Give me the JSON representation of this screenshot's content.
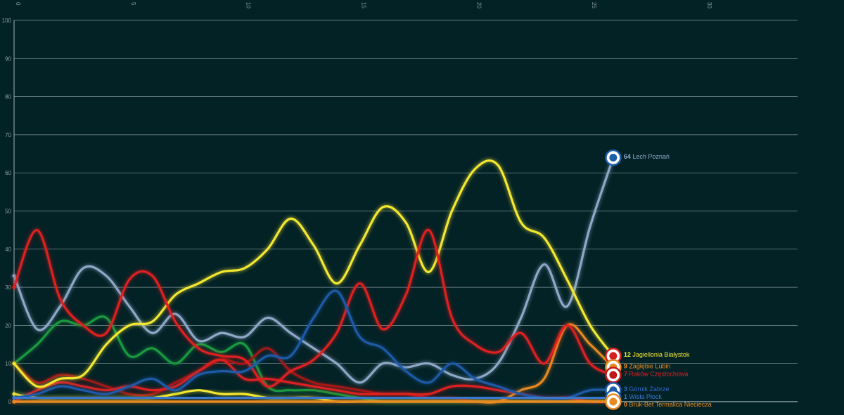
{
  "chart_data": {
    "type": "line",
    "title": "",
    "xlabel": "",
    "ylabel": "",
    "xlim": [
      0,
      34
    ],
    "ylim": [
      0,
      100
    ],
    "x_ticks": [
      0,
      5,
      10,
      15,
      20,
      25,
      30
    ],
    "y_ticks": [
      0,
      10,
      20,
      30,
      40,
      50,
      60,
      70,
      80,
      90,
      100
    ],
    "grid": true,
    "legend": "end-of-line labels",
    "series": [
      {
        "name": "Lech Poznań",
        "end_value": "64",
        "color": "#8fa8c8",
        "label_color": "#8fa8c8",
        "badge": "#1a5fa8",
        "show_label": true,
        "values": [
          33,
          19,
          25,
          35,
          33,
          25,
          18,
          23,
          16,
          18,
          17,
          22,
          18,
          14,
          10,
          5,
          10,
          9,
          10,
          7,
          6,
          10,
          22,
          36,
          25,
          46,
          64
        ]
      },
      {
        "name": "Jagiellonia Białystok",
        "end_value": "12",
        "color": "#f4e830",
        "label_color": "#f4e830",
        "badge": "#d42020",
        "show_label": true,
        "values": [
          10,
          4,
          6,
          7,
          15,
          20,
          21,
          28,
          31,
          34,
          35,
          40,
          48,
          41,
          31,
          41,
          51,
          47,
          34,
          50,
          61,
          62,
          47,
          43,
          32,
          20,
          12
        ]
      },
      {
        "name": "Zagłębie Lubin",
        "end_value": "9",
        "color": "#e88a20",
        "label_color": "#e88a20",
        "badge": "#e88a20",
        "show_label": true,
        "values": [
          0,
          0,
          0,
          0,
          0,
          0,
          0,
          0,
          0,
          0,
          0,
          0,
          0,
          0,
          0,
          0,
          0,
          0,
          0,
          0,
          0,
          0,
          3,
          6,
          20,
          15,
          9
        ]
      },
      {
        "name": "Raków Częstochowa",
        "end_value": "7",
        "color": "#e02020",
        "label_color": "#e02020",
        "badge": "#c01818",
        "show_label": true,
        "values": [
          30,
          45,
          27,
          20,
          18,
          32,
          33,
          21,
          14,
          12,
          11,
          4,
          8,
          11,
          18,
          31,
          19,
          28,
          45,
          22,
          15,
          13,
          18,
          10,
          20,
          10,
          7
        ]
      },
      {
        "name": "Górnik Zabrze",
        "end_value": "3",
        "color": "#1e5aa8",
        "label_color": "#2e6ad0",
        "badge": "#1e5aa8",
        "show_label": true,
        "values": [
          1,
          2,
          4,
          3,
          2,
          4,
          6,
          3,
          7,
          8,
          8,
          12,
          12,
          22,
          29,
          17,
          14,
          8,
          5,
          10,
          6,
          4,
          2,
          1,
          1,
          3,
          3
        ]
      },
      {
        "name": "Wisła Płock",
        "end_value": "1",
        "color": "#3a78d0",
        "label_color": "#3a78d0",
        "badge": "#1e5aa8",
        "show_label": true,
        "values": [
          1,
          1,
          1,
          1,
          1,
          1,
          1,
          1,
          1,
          1,
          1,
          1,
          1,
          1,
          1,
          1,
          1,
          1,
          1,
          1,
          1,
          1,
          1,
          1,
          1,
          1,
          1
        ]
      },
      {
        "name": "Bruk-Bet Termalica Nieciecza",
        "end_value": "0",
        "color": "#e88a20",
        "label_color": "#e88a20",
        "badge": "#e88a20",
        "show_label": true,
        "values": [
          0,
          0,
          0,
          0,
          0,
          0,
          0,
          0,
          0,
          0,
          0,
          0,
          0,
          0,
          0,
          0,
          0,
          0,
          0,
          0,
          0,
          0,
          0,
          0,
          0,
          0,
          0
        ]
      },
      {
        "name": "",
        "end_value": "",
        "color": "#1a9a40",
        "label_color": "#1a9a40",
        "badge": "#1a9a40",
        "show_label": false,
        "values": [
          10,
          15,
          21,
          20,
          22,
          12,
          14,
          10,
          15,
          13,
          15,
          4,
          3,
          3,
          2,
          1,
          0,
          0,
          0,
          0,
          0,
          0,
          0,
          0,
          0,
          0,
          0
        ]
      },
      {
        "name": "",
        "end_value": "",
        "color": "#a01818",
        "label_color": "#a01818",
        "badge": "#a01818",
        "show_label": false,
        "values": [
          10,
          5,
          7,
          6,
          4,
          2,
          2,
          5,
          8,
          11,
          10,
          14,
          8,
          5,
          4,
          3,
          2,
          2,
          1,
          1,
          0,
          0,
          0,
          0,
          0,
          0,
          0
        ]
      },
      {
        "name": "",
        "end_value": "",
        "color": "#e02020",
        "label_color": "#e02020",
        "badge": "#e02020",
        "show_label": false,
        "values": [
          0,
          3,
          5,
          4,
          3,
          4,
          3,
          4,
          8,
          11,
          6,
          6,
          5,
          4,
          3,
          2,
          2,
          2,
          2,
          4,
          4,
          3,
          2,
          1,
          1,
          0,
          0
        ]
      },
      {
        "name": "",
        "end_value": "",
        "color": "#f4e830",
        "label_color": "#f4e830",
        "badge": "#f4e830",
        "show_label": false,
        "values": [
          2,
          1,
          1,
          1,
          1,
          1,
          1,
          2,
          3,
          2,
          2,
          1,
          1,
          1,
          0,
          0,
          0,
          0,
          0,
          0,
          0,
          0,
          0,
          0,
          0,
          0,
          0
        ]
      },
      {
        "name": "",
        "end_value": "",
        "color": "#2a8a8a",
        "label_color": "#2a8a8a",
        "badge": "#2a8a8a",
        "show_label": false,
        "values": [
          1,
          1,
          1,
          1,
          1,
          1,
          1,
          1,
          1,
          1,
          1,
          1,
          1,
          1,
          1,
          1,
          1,
          1,
          1,
          1,
          1,
          1,
          1,
          1,
          1,
          1,
          1
        ]
      }
    ]
  }
}
